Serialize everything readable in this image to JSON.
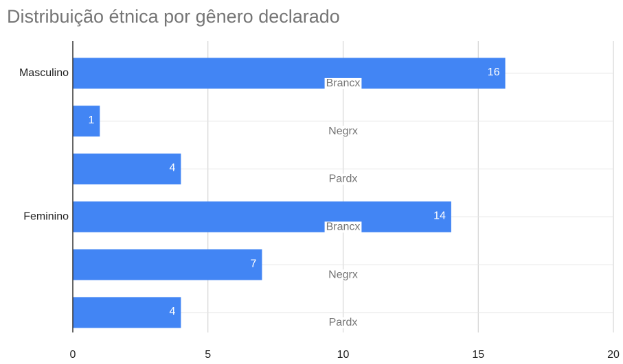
{
  "chart_data": {
    "type": "hbar",
    "title": "Distribuição étnica por gênero declarado",
    "categories": [
      "Masculino",
      null,
      null,
      "Feminino",
      null,
      null
    ],
    "bar_labels": [
      "Brancx",
      "Negrx",
      "Pardx",
      "Brancx",
      "Negrx",
      "Pardx"
    ],
    "values": [
      16,
      1,
      4,
      14,
      7,
      4
    ],
    "color": "#4285f4",
    "xlim": [
      0,
      20
    ],
    "xticks": [
      0,
      5,
      10,
      15,
      20
    ],
    "grid": true
  }
}
